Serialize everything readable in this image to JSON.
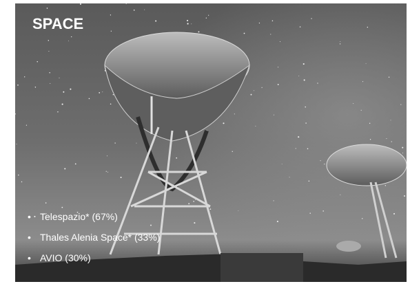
{
  "slide": {
    "title": "SPACE",
    "bullets": [
      "Telespazio* (67%)",
      "Thales Alenia Space* (33%)",
      "AVIO (30%)"
    ]
  }
}
